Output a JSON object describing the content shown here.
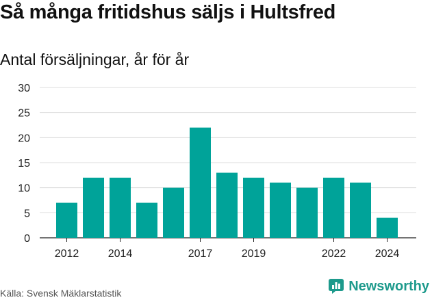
{
  "title": "Så många fritidshus säljs i Hultsfred",
  "subtitle": "Antal försäljningar, år för år",
  "source": "Källa: Svensk Mäklarstatistik",
  "brand": "Newsworthy",
  "colors": {
    "bar": "#00a399",
    "grid": "#dcdcdc",
    "brand": "#1d9a8c"
  },
  "chart_data": {
    "type": "bar",
    "categories": [
      "2012",
      "2013",
      "2014",
      "2015",
      "2016",
      "2017",
      "2018",
      "2019",
      "2020",
      "2021",
      "2022",
      "2023",
      "2024"
    ],
    "values": [
      7,
      12,
      12,
      7,
      10,
      22,
      13,
      12,
      11,
      10,
      12,
      11,
      4
    ],
    "x_tick_labels": [
      "2012",
      "2014",
      "2017",
      "2019",
      "2022",
      "2024"
    ],
    "y_ticks": [
      0,
      5,
      10,
      15,
      20,
      25,
      30
    ],
    "ylim": [
      0,
      30
    ],
    "grid": true,
    "legend": "none"
  }
}
